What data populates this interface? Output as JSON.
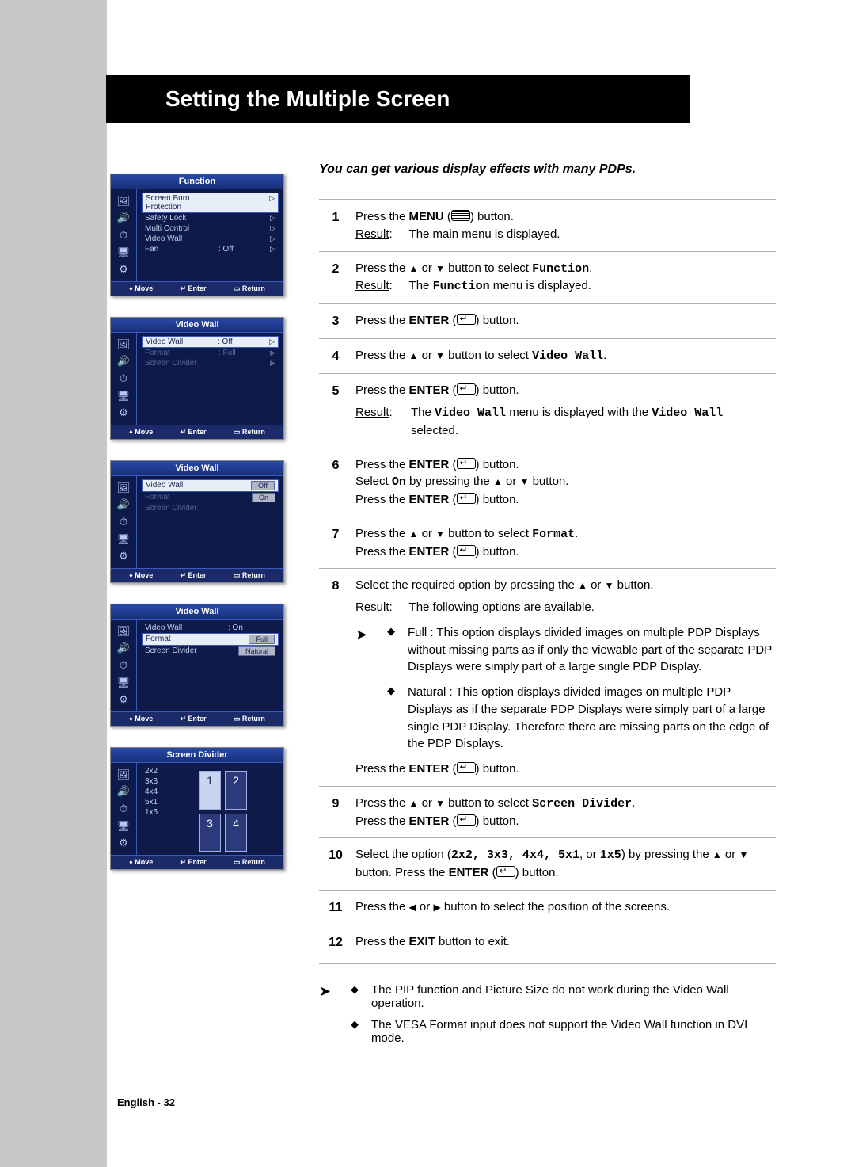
{
  "title": "Setting the Multiple Screen",
  "intro": "You can get various display effects with many PDPs.",
  "page_label": "English - 32",
  "footer": {
    "move": "Move",
    "enter": "Enter",
    "return": "Return"
  },
  "osd1": {
    "title": "Function",
    "rows": [
      {
        "label": "Screen Burn Protection",
        "val": "",
        "a": "▷",
        "sel": true
      },
      {
        "label": "Safety Lock",
        "val": "",
        "a": "▷"
      },
      {
        "label": "Multi Control",
        "val": "",
        "a": "▷"
      },
      {
        "label": "Video Wall",
        "val": "",
        "a": "▷"
      },
      {
        "label": "Fan",
        "val": ": Off",
        "a": "▷"
      }
    ]
  },
  "osd2": {
    "title": "Video Wall",
    "rows": [
      {
        "label": "Video Wall",
        "val": ": Off",
        "a": "▷",
        "sel": true
      },
      {
        "label": "Format",
        "val": ": Full",
        "a": "▶",
        "dim": true
      },
      {
        "label": "Screen Divider",
        "val": "",
        "a": "▶",
        "dim": true
      }
    ]
  },
  "osd3": {
    "title": "Video Wall",
    "rows": [
      {
        "label": "Video Wall",
        "sel": true,
        "pill": "Off"
      },
      {
        "label": "Format",
        "pill": "On",
        "dim": true
      },
      {
        "label": "Screen Divider",
        "dim": true
      }
    ]
  },
  "osd4": {
    "title": "Video Wall",
    "rows": [
      {
        "label": "Video Wall",
        "val": ": On"
      },
      {
        "label": "Format",
        "sel": true,
        "pill": "Full"
      },
      {
        "label": "Screen Divider",
        "pill": "Natural"
      }
    ]
  },
  "osd5": {
    "title": "Screen Divider",
    "rows": [
      {
        "label": "2x2"
      },
      {
        "label": "3x3",
        "grid": true
      },
      {
        "label": "4x4"
      },
      {
        "label": "5x1"
      },
      {
        "label": "1x5"
      }
    ],
    "cells": [
      "1",
      "2",
      "3",
      "4"
    ]
  },
  "steps": {
    "s1": {
      "line1a": "Press the ",
      "line1b": "MENU",
      "line1c": " button.",
      "result_label": "Result",
      "result_text": "The main menu is displayed."
    },
    "s2": {
      "line1a": "Press the ",
      "line1b": " button to select ",
      "kw": "Function",
      "dot": ".",
      "result_label": "Result",
      "result_text1": "The ",
      "kw2": "Function",
      "result_text2": " menu is displayed."
    },
    "s3": {
      "a": "Press the ",
      "b": "ENTER",
      "c": " button."
    },
    "s4": {
      "a": "Press the ",
      "b": " button to select ",
      "kw": "Video Wall",
      "dot": "."
    },
    "s5": {
      "a": "Press the ",
      "b": "ENTER",
      "c": " button.",
      "result_label": "Result",
      "r1": "The ",
      "kw1": "Video Wall",
      "r2": " menu is displayed with the ",
      "kw2": "Video Wall",
      "r3": " selected."
    },
    "s6": {
      "l1a": "Press the ",
      "l1b": "ENTER",
      "l1c": " button.",
      "l2a": "Select ",
      "kw": "On",
      "l2b": " by pressing the ",
      "l2c": " button.",
      "l3a": "Press the ",
      "l3b": "ENTER",
      "l3c": " button."
    },
    "s7": {
      "l1a": "Press the ",
      "l1b": " button to select ",
      "kw": "Format",
      "dot": ".",
      "l2a": "Press the ",
      "l2b": "ENTER",
      "l2c": " button."
    },
    "s8": {
      "l1a": "Select the required option by pressing the ",
      "l1b": " button.",
      "result_label": "Result",
      "result_text": "The following options are available.",
      "opt1": "Full : This option displays divided images on multiple PDP Displays without missing parts as if only the viewable part of the separate PDP Displays were simply part of a large single PDP Display.",
      "opt2": "Natural : This option displays divided images on multiple PDP Displays as if the separate PDP Displays were simply part of a large single PDP Display. Therefore  there are missing parts on the edge of the PDP Displays.",
      "l3a": "Press the ",
      "l3b": "ENTER",
      "l3c": " button."
    },
    "s9": {
      "l1a": "Press the ",
      "l1b": " button to select ",
      "kw": "Screen Divider",
      "dot": ".",
      "l2a": "Press the ",
      "l2b": "ENTER",
      "l2c": " button."
    },
    "s10": {
      "l1a": "Select the option (",
      "kws": "2x2, 3x3, 4x4, 5x1",
      "or": ", or ",
      "kw5": "1x5",
      "l1b": ") by pressing the ",
      "l1c": " button. Press the ",
      "l1d": "ENTER",
      "l1e": " button."
    },
    "s11": {
      "a": "Press the ",
      "b": " button to select the position of the screens."
    },
    "s12": {
      "a": "Press the ",
      "b": "EXIT",
      "c": " button to exit."
    }
  },
  "notes": {
    "n1": "The PIP function and Picture Size do not work during the Video Wall operation.",
    "n2": "The VESA Format input does not support the Video Wall function in DVI mode."
  }
}
